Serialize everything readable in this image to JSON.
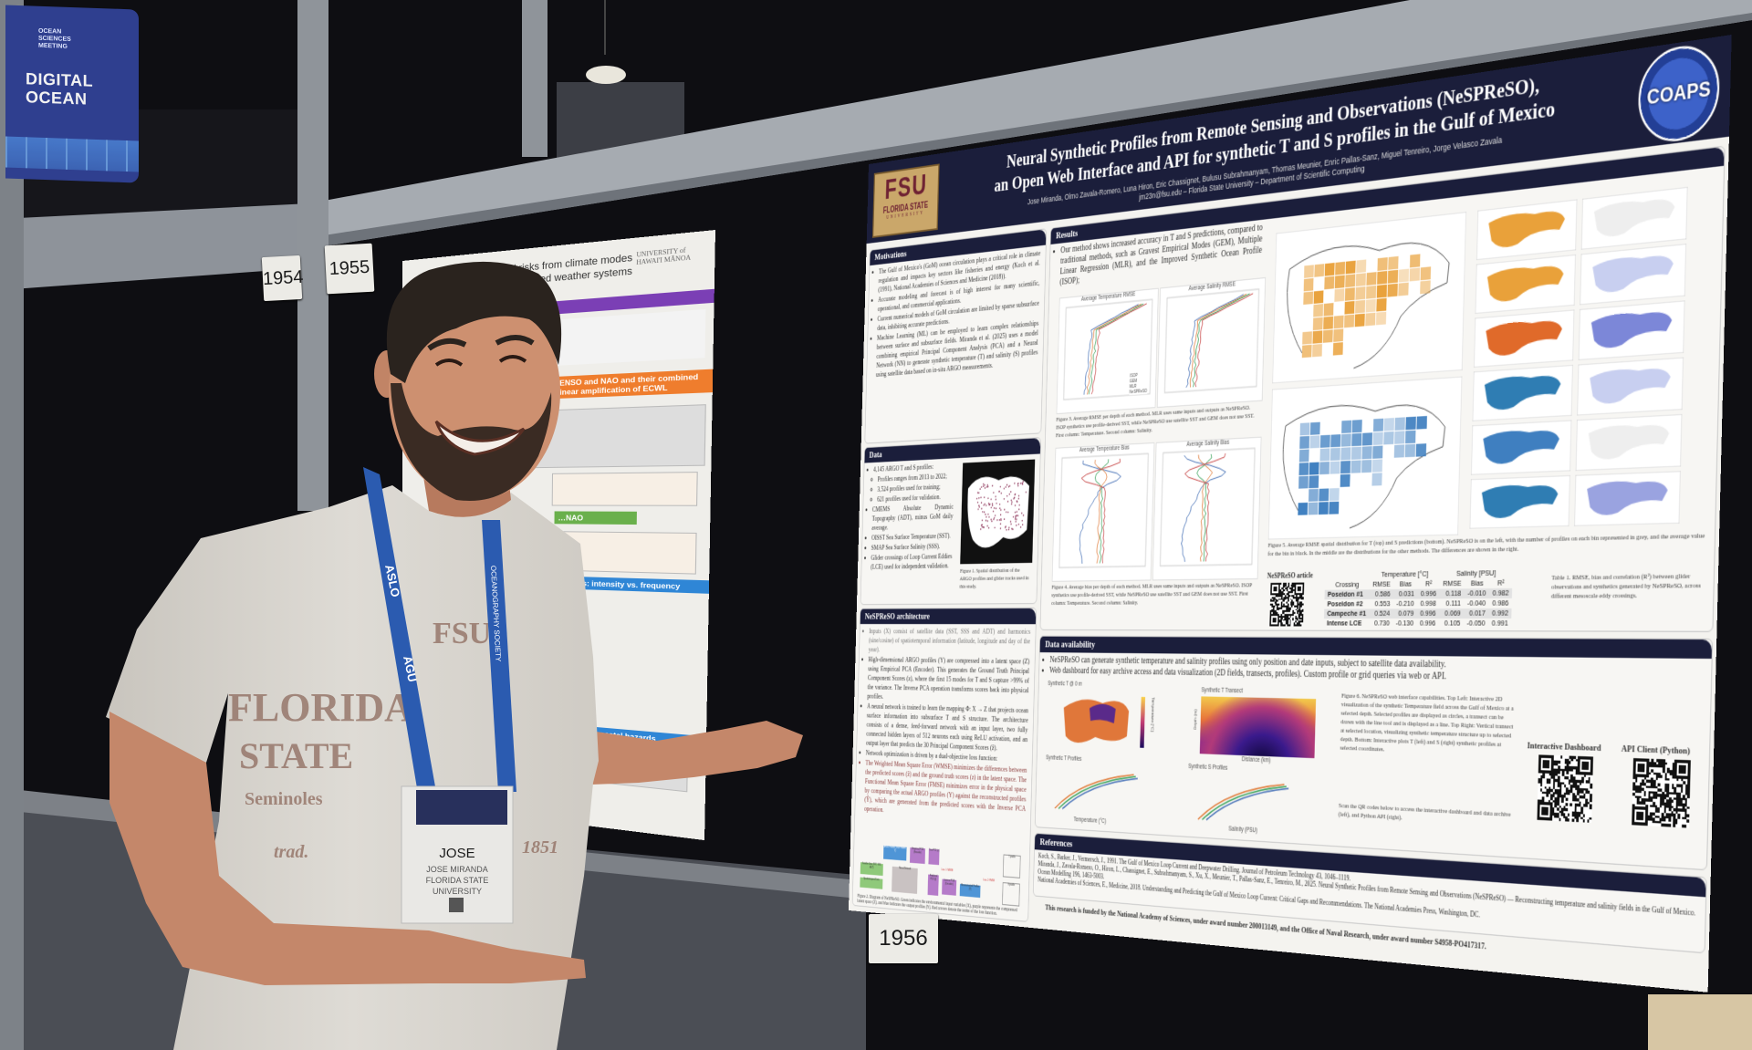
{
  "venue": {
    "sign_logo": "OCEAN SCIENCES MEETING",
    "sign_title_line1": "DIGITAL",
    "sign_title_line2": "OCEAN",
    "booth_numbers": [
      "1954",
      "1955",
      "1956"
    ]
  },
  "main_poster": {
    "logo_left": {
      "big": "FSU",
      "small": "FLORIDA STATE",
      "tiny": "UNIVERSITY"
    },
    "logo_right": "COAPS",
    "title_line1": "Neural Synthetic Profiles from Remote Sensing and Observations (NeSPReSO),",
    "title_line2": "an Open Web Interface and API for synthetic T and S profiles in the Gulf of Mexico",
    "authors": "Jose Miranda, Olmo Zavala-Romero, Luna Hiron, Eric Chassignet, Bulusu Subrahmanyam, Thomas Meunier, Enric Pallas-Sanz, Miguel Tenreiro, Jorge Velasco Zavala",
    "affiliation": "jm23n@fsu.edu – Florida State University – Department of Scientific Computing",
    "motivations": {
      "heading": "Motivations",
      "bullets": [
        "The Gulf of Mexico's (GoM) ocean circulation plays a critical role in climate regulation and impacts key sectors like fisheries and energy (Koch et al. (1991), National Academies of Sciences and Medicine (2018)).",
        "Accurate modeling and forecast is of high interest for many scientific, operational, and commercial applications.",
        "Current numerical models of GoM circulation are limited by sparse subsurface data, inhibiting accurate predictions.",
        "Machine Learning (ML) can be employed to learn complex relationships between surface and subsurface fields. Miranda et al. (2025) uses a model combining empirical Principal Component Analysis (PCA) and a Neural Network (NN) to generate synthetic temperature (T) and salinity (S) profiles using satellite data based on in-situ ARGO measurements."
      ]
    },
    "data": {
      "heading": "Data",
      "bullets": [
        "4,145 ARGO T and S profiles:",
        "Profiles ranges from 2013 to 2022;",
        "3,524 profiles used for training;",
        "621 profiles used for validation.",
        "CMEMS Absolute Dynamic Topography (ADT), minus GoM daily average.",
        "OISST Sea Surface Temperature (SST).",
        "SMAP Sea Surface Salinity (SSS).",
        "Glider crossings of Loop Current Eddies (LCE) used for independent validation."
      ],
      "figure_caption": "Figure 1. Spatial distribution of the ARGO profiles and glider tracks used in this study."
    },
    "architecture": {
      "heading": "NeSPReSO architecture",
      "bullets": [
        "Inputs (X) consist of satellite data (SST, SSS and ADT) and harmonics (sine/cosine) of spatiotemporal information (latitude, longitude and day of the year).",
        "High-dimensional ARGO profiles (Y) are compressed into a latent space (Z) using Empirical PCA (Encoder). This generates the Ground Truth Principal Component Scores (z), where the first 15 modes for T and S capture >99% of the variance. The Inverse PCA operation transforms scores back into physical profiles.",
        "A neural network is trained to learn the mapping Φ: X → Z that projects ocean surface information into subsurface T and S structure. The architecture consists of a dense, feed-forward network with an input layer, two fully connected hidden layers of 512 neurons each using ReLU activation, and an output layer that predicts the 30 Principal Component Scores (ẑ).",
        "Network optimization is driven by a dual-objective loss function:",
        "The Weighted Mean Square Error (WMSE) minimizes the differences between the predicted scores (ẑ) and the ground truth scores (z) in the latent space. The Functional Mean Square Error (FMSE) minimizes error in the physical space by comparing the actual ARGO profiles (Y) against the reconstructed profiles (Ŷ), which are generated from the predicted scores with the Inverse PCA operation."
      ],
      "diagram_labels": [
        "ARGO Profiles (True Profiles, Y)",
        "Empirical PCA (Encoder)",
        "True PCS (z)",
        "Neural Network",
        "Satellite Data (SST, SSS, ADT)",
        "Spatiotemporal Data",
        "Predicted PCS (ẑ)",
        "Inverse PCA (Decoder)",
        "Reconstructed Profiles (Ŷ)",
        "Loss 1: WMSE",
        "Loss 2: FMSE",
        "T profile",
        "S profile"
      ],
      "figure_caption": "Figure 2. Diagram of NeSPReSO. Green indicates the environmental input variables (X), purple represents the compressed latent space (Z), and blue indicates the output profiles (Y). Red arrows denote the terms of the loss function."
    },
    "results": {
      "heading": "Results",
      "bullet": "Our method shows increased accuracy in T and S predictions, compared to traditional methods, such as Gravest Empirical Modes (GEM), Multiple Linear Regression (MLR), and the Improved Synthetic Ocean Profile (ISOP);",
      "fig3_titles": [
        "Average Temperature RMSE",
        "Average Salinity RMSE"
      ],
      "fig4_titles": [
        "Average Temperature Bias",
        "Average Salinity Bias"
      ],
      "legend": [
        "ISOP",
        "GEM",
        "MLR",
        "NeSPReSO"
      ],
      "fig3_caption": "Figure 3. Average RMSE per depth of each method. MLR uses same inputs and outputs as NeSPReSO. ISOP synthetics use profile-derived SST, while NeSPReSO use satellite SST and GEM does not use SST. First column: Temperature. Second column: Salinity.",
      "fig4_caption": "Figure 4. Average bias per depth of each method. MLR uses same inputs and outputs as NeSPReSO. ISOP synthetics use profile-derived SST, while NeSPReSO use satellite SST and GEM does not use SST. First column: Temperature. Second column: Salinity.",
      "fig5_caption": "Figure 5. Average RMSE spatial distribution for T (top) and S predictions (bottom). NeSPReSO is on the left, with the number of profiles on each bin represented in grey, and the average value for the bin in black. In the middle are the distributions for the other methods. The differences are shown in the right.",
      "article_label": "NeSPReSO article",
      "table": {
        "group_headers": [
          "Temperature [°C]",
          "Salinity [PSU]"
        ],
        "columns": [
          "Crossing",
          "RMSE",
          "Bias",
          "R²",
          "RMSE",
          "Bias",
          "R²"
        ],
        "rows": [
          [
            "Poseidon #1",
            "0.586",
            "0.031",
            "0.996",
            "0.118",
            "-0.010",
            "0.982"
          ],
          [
            "Poseidon #2",
            "0.553",
            "-0.210",
            "0.998",
            "0.111",
            "-0.040",
            "0.986"
          ],
          [
            "Campeche #1",
            "0.524",
            "0.079",
            "0.996",
            "0.069",
            "0.017",
            "0.992"
          ],
          [
            "Intense LCE",
            "0.730",
            "-0.130",
            "0.996",
            "0.105",
            "-0.050",
            "0.991"
          ]
        ],
        "caption": "Table 1. RMSE, bias and correlation (R²) between glider observations and synthetics generated by NeSPReSO, across different mesoscale eddy crossings."
      }
    },
    "data_availability": {
      "heading": "Data availability",
      "bullets": [
        "NeSPReSO can generate synthetic temperature and salinity profiles using only position and date inputs, subject to satellite data availability.",
        "Web dashboard for easy archive access and data visualization (2D fields, transects, profiles). Custom profile or grid queries via web or API."
      ],
      "panel_titles": [
        "Synthetic T @ 0 m",
        "Synthetic T Transect",
        "Synthetic T Profiles",
        "Synthetic S Profiles"
      ],
      "axis_labels": [
        "Temperature [°C]",
        "Distance (km)",
        "Depth (m)",
        "Temperature (°C)",
        "Salinity (PSU)"
      ],
      "fig6_caption": "Figure 6. NeSPReSO web interface capabilities. Top Left: Interactive 2D visualization of the synthetic Temperature field across the Gulf of Mexico at a selected depth. Selected profiles are displayed as circles, a transect can be drawn with the line tool and is displayed as a line. Top Right: Vertical transect at selected location, visualizing synthetic temperature structure up to selected depth. Bottom: Interactive plots T (left) and S (right) synthetic profiles at selected coordinates.",
      "scan_text": "Scan the QR codes below to access the interactive dashboard and data archive (left), and Python API (right).",
      "qr_labels": [
        "Interactive Dashboard",
        "API Client (Python)"
      ]
    },
    "references": {
      "heading": "References",
      "items": [
        "Koch, S., Barker, J., Vermersch, J., 1991. The Gulf of Mexico Loop Current and Deepwater Drilling. Journal of Petroleum Technology 43, 1046–1119.",
        "Miranda, J., Zavala-Romero, O., Hiron, L., Chassignet, E., Subrahmanyam, S., Xu, X., Meunier, T., Pallas-Sanz, E., Tenreiro, M., 2025. Neural Synthetic Profiles from Remote Sensing and Observations (NeSPReSO) — Reconstructing temperature and salinity fields in the Gulf of Mexico. Ocean Modelling 196, 1463-5003.",
        "National Academies of Sciences, E., Medicine, 2018. Understanding and Predicting the Gulf of Mexico Loop Current: Critical Gaps and Recommendations. The National Academies Press, Washington, DC."
      ]
    },
    "funding": "This research is funded by the National Academy of Sciences, under award number 200013149, and the Office of Naval Research, under award number S4958-PO417317."
  },
  "left_poster": {
    "title_line1": "…tions of coastal risks from climate modes",
    "title_line2": "…'s reorganized weather systems",
    "logo": "UNIVERSITY of HAWAI'I MĀNOA",
    "sections": [
      "…act",
      "…luence of ENSO and NAO and their combined nonlinear amplification of ECWL",
      "…NAO",
      "Coastal hazards: intensity vs. frequency",
      "…dictions of coastal hazards"
    ],
    "section_colors": [
      "#7b3fb5",
      "#ef7d2d",
      "#6ab04c",
      "#2f86d6",
      "#2f86d6"
    ]
  },
  "person": {
    "badge": {
      "first_name": "JOSE",
      "full_name": "JOSE MIRANDA",
      "affiliation_line1": "FLORIDA STATE",
      "affiliation_line2": "UNIVERSITY"
    },
    "lanyard_text": [
      "ASLO",
      "AGU",
      "OCEANOGRAPHY SOCIETY"
    ],
    "shirt_text": [
      "FSU",
      "FLORIDA",
      "STATE",
      "Seminoles",
      "trad.",
      "1851"
    ]
  },
  "colors": {
    "poster_navy": "#1b1e3b",
    "fsu_gold": "#caa76a",
    "fsu_garnet": "#6f2233",
    "lanyard_blue": "#2b5bb0",
    "sign_blue": "#2f3f8f"
  }
}
